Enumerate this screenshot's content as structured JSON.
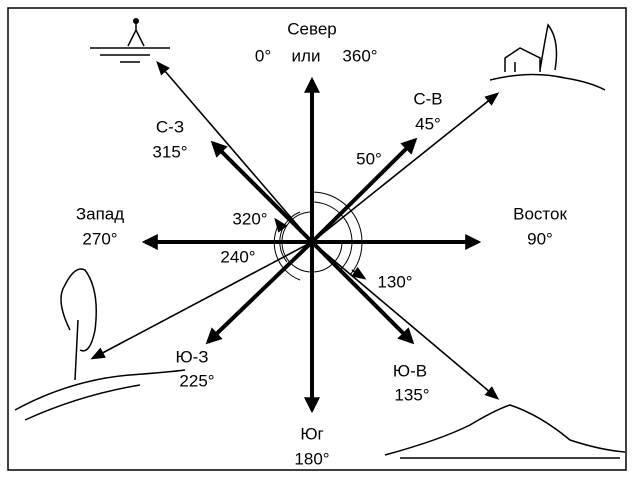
{
  "labels": {
    "north": "Север",
    "zero": "0°",
    "or": "или",
    "full": "360°",
    "ne": "С-В",
    "ne_deg": "45°",
    "a50": "50°",
    "nw": "С-З",
    "nw_deg": "315°",
    "west": "Запад",
    "west_deg": "270°",
    "east": "Восток",
    "east_deg": "90°",
    "a320": "320°",
    "a240": "240°",
    "a130": "130°",
    "sw": "Ю-З",
    "sw_deg": "225°",
    "se": "Ю-В",
    "se_deg": "135°",
    "south": "Юг",
    "south_deg": "180°"
  }
}
